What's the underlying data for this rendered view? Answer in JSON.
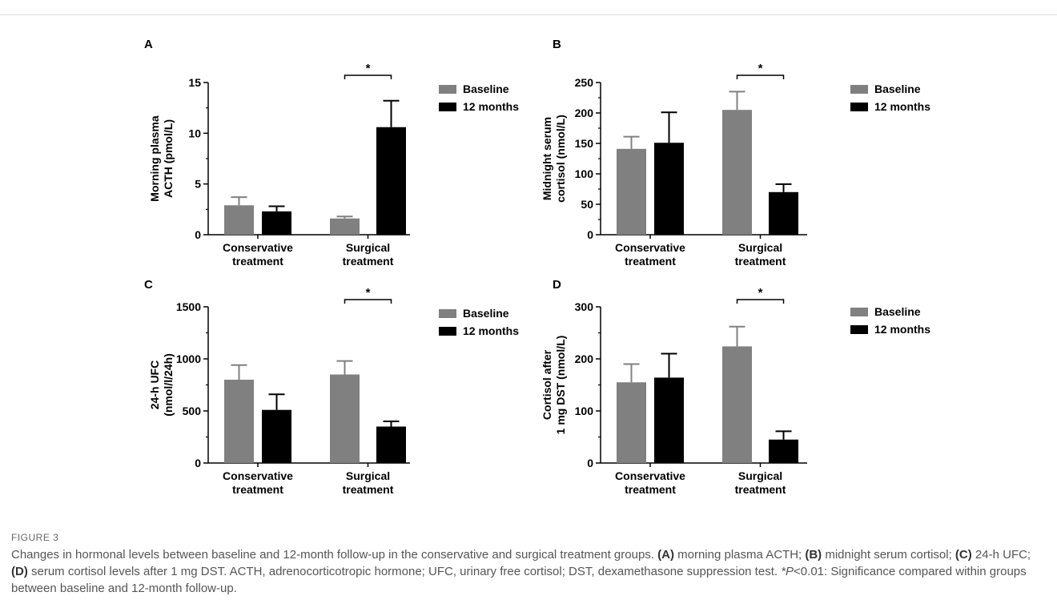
{
  "colors": {
    "baseline": "#808080",
    "followup": "#000000"
  },
  "legend": {
    "baseline_label": "Baseline",
    "followup_label": "12 months"
  },
  "figure_label": "FIGURE 3",
  "caption": {
    "intro": "Changes in hormonal levels between baseline and 12-month follow-up in the conservative and surgical treatment groups. ",
    "a_tag": "(A)",
    "a_text": " morning plasma ACTH; ",
    "b_tag": "(B)",
    "b_text": " midnight serum cortisol; ",
    "c_tag": "(C)",
    "c_text": " 24-h UFC; ",
    "d_tag": "(D)",
    "d_text": " serum cortisol levels after 1 mg DST. ACTH, adrenocorticotropic hormone; UFC, urinary free cortisol; DST, dexamethasone suppression test. ",
    "sig_italic": "*P",
    "sig_text": "<0.01: Significance compared within groups between baseline and 12-month follow-up."
  },
  "chart_data": [
    {
      "type": "bar",
      "panel": "A",
      "ylabel_lines": [
        "Morning plasma",
        "ACTH (pmol/L)"
      ],
      "categories": [
        [
          "Conservative",
          "treatment"
        ],
        [
          "Surgical",
          "treatment"
        ]
      ],
      "ylim": [
        0,
        15
      ],
      "yticks": [
        0,
        5,
        10,
        15
      ],
      "series": [
        {
          "name": "Baseline",
          "values": [
            2.9,
            1.6
          ],
          "errors": [
            0.8,
            0.2
          ]
        },
        {
          "name": "12 months",
          "values": [
            2.3,
            10.6
          ],
          "errors": [
            0.5,
            2.6
          ]
        }
      ],
      "significance": [
        {
          "category": 1,
          "marker": "*"
        }
      ]
    },
    {
      "type": "bar",
      "panel": "B",
      "ylabel_lines": [
        "Midnight serum",
        "cortisol (nmol/L)"
      ],
      "categories": [
        [
          "Conservative",
          "treatment"
        ],
        [
          "Surgical",
          "treatment"
        ]
      ],
      "ylim": [
        0,
        250
      ],
      "yticks": [
        0,
        50,
        100,
        150,
        200,
        250
      ],
      "series": [
        {
          "name": "Baseline",
          "values": [
            141,
            205
          ],
          "errors": [
            20,
            30
          ]
        },
        {
          "name": "12 months",
          "values": [
            151,
            70
          ],
          "errors": [
            50,
            13
          ]
        }
      ],
      "significance": [
        {
          "category": 1,
          "marker": "*"
        }
      ]
    },
    {
      "type": "bar",
      "panel": "C",
      "ylabel_lines": [
        "24-h UFC",
        "(nmol/l/24h)"
      ],
      "categories": [
        [
          "Conservative",
          "treatment"
        ],
        [
          "Surgical",
          "treatment"
        ]
      ],
      "ylim": [
        0,
        1500
      ],
      "yticks": [
        0,
        500,
        1000,
        1500
      ],
      "series": [
        {
          "name": "Baseline",
          "values": [
            800,
            850
          ],
          "errors": [
            140,
            130
          ]
        },
        {
          "name": "12 months",
          "values": [
            510,
            350
          ],
          "errors": [
            150,
            50
          ]
        }
      ],
      "significance": [
        {
          "category": 1,
          "marker": "*"
        }
      ]
    },
    {
      "type": "bar",
      "panel": "D",
      "ylabel_lines": [
        "Cortisol after",
        "1 mg DST (nmol/L)"
      ],
      "categories": [
        [
          "Conservative",
          "treatment"
        ],
        [
          "Surgical",
          "treatment"
        ]
      ],
      "ylim": [
        0,
        300
      ],
      "yticks": [
        0,
        100,
        200,
        300
      ],
      "series": [
        {
          "name": "Baseline",
          "values": [
            155,
            224
          ],
          "errors": [
            35,
            38
          ]
        },
        {
          "name": "12 months",
          "values": [
            164,
            45
          ],
          "errors": [
            46,
            16
          ]
        }
      ],
      "significance": [
        {
          "category": 1,
          "marker": "*"
        }
      ]
    }
  ]
}
